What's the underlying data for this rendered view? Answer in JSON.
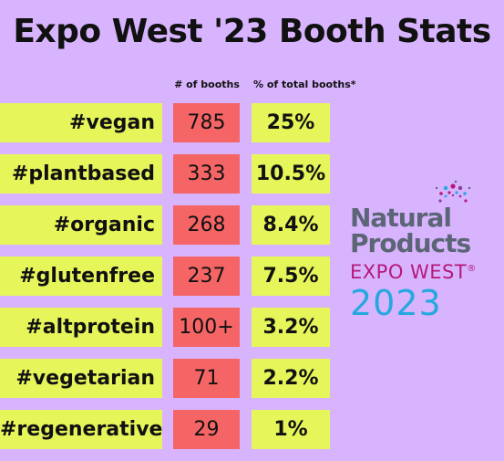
{
  "title": "Expo West '23 Booth Stats",
  "columns": {
    "booths": "# of booths",
    "percent": "% of total booths*"
  },
  "rows": [
    {
      "tag": "#vegan",
      "booths": "785",
      "percent": "25%"
    },
    {
      "tag": "#plantbased",
      "booths": "333",
      "percent": "10.5%"
    },
    {
      "tag": "#organic",
      "booths": "268",
      "percent": "8.4%"
    },
    {
      "tag": "#glutenfree",
      "booths": "237",
      "percent": "7.5%"
    },
    {
      "tag": "#altprotein",
      "booths": "100+",
      "percent": "3.2%"
    },
    {
      "tag": "#vegetarian",
      "booths": "71",
      "percent": "2.2%"
    },
    {
      "tag": "#regenerative",
      "booths": "29",
      "percent": "1%"
    }
  ],
  "logo": {
    "line1": "Natural",
    "line2": "Products",
    "line3": "EXPO WEST",
    "mark": "®",
    "year": "2023"
  },
  "colors": {
    "background": "#d8b4fe",
    "label_cell": "#e6f55a",
    "count_cell": "#f56565",
    "logo_grey": "#5b6575",
    "logo_magenta": "#b5197a",
    "logo_blue": "#25a8e0"
  },
  "chart_data": {
    "type": "table",
    "title": "Expo West '23 Booth Stats",
    "columns": [
      "",
      "# of booths",
      "% of total booths*"
    ],
    "categories": [
      "#vegan",
      "#plantbased",
      "#organic",
      "#glutenfree",
      "#altprotein",
      "#vegetarian",
      "#regenerative"
    ],
    "series": [
      {
        "name": "# of booths",
        "values": [
          "785",
          "333",
          "268",
          "237",
          "100+",
          "71",
          "29"
        ]
      },
      {
        "name": "% of total booths*",
        "values": [
          "25%",
          "10.5%",
          "8.4%",
          "7.5%",
          "3.2%",
          "2.2%",
          "1%"
        ]
      }
    ]
  }
}
